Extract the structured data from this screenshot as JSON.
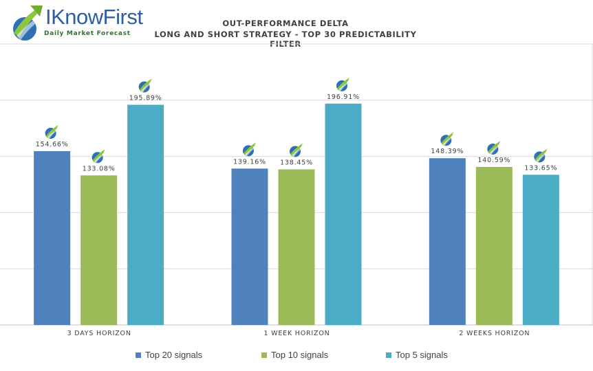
{
  "logo": {
    "brand": "I KnowFirst",
    "brand_i": "I",
    "brand_rest": "KnowFirst",
    "tagline": "Daily Market Forecast"
  },
  "chart_data": {
    "type": "bar",
    "title": "OUT-PERFORMANCE DELTA",
    "subtitle": "LONG AND SHORT STRATEGY - TOP 30 PREDICTABILITY FILTER",
    "categories": [
      "3 DAYS HORIZON",
      "1 WEEK HORIZON",
      "2 WEEKS HORIZON"
    ],
    "series": [
      {
        "name": "Top 20 signals",
        "color": "#4f81bd",
        "values": [
          154.66,
          139.16,
          148.39
        ],
        "labels": [
          "154.66%",
          "139.16%",
          "148.39%"
        ]
      },
      {
        "name": "Top 10 signals",
        "color": "#9bbb59",
        "values": [
          133.08,
          138.45,
          140.59
        ],
        "labels": [
          "133.08%",
          "138.45%",
          "140.59%"
        ]
      },
      {
        "name": "Top 5 signals",
        "color": "#4bacc6",
        "values": [
          195.89,
          196.91,
          133.65
        ],
        "labels": [
          "195.89%",
          "196.91%",
          "133.65%"
        ]
      }
    ],
    "ylim": [
      0,
      250
    ],
    "grid": true,
    "legend": "bottom",
    "data_label_icon": "i-know-first-logo-icon"
  }
}
